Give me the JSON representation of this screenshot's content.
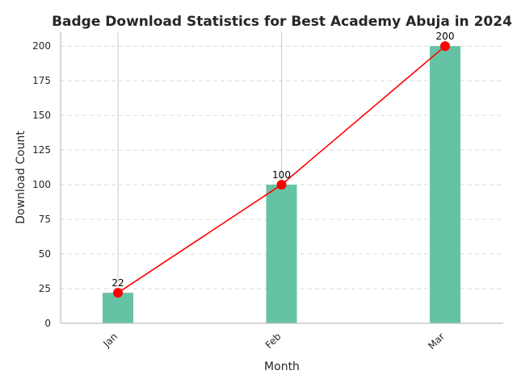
{
  "chart_data": {
    "type": "bar",
    "title": "Badge Download Statistics for Best Academy Abuja in 2024",
    "xlabel": "Month",
    "ylabel": "Download Count",
    "categories": [
      "Jan",
      "Feb",
      "Mar"
    ],
    "series": [
      {
        "type": "bar",
        "values": [
          22,
          100,
          200
        ],
        "color": "#66c2a5"
      },
      {
        "type": "line",
        "values": [
          22,
          100,
          200
        ],
        "color": "#ff0000",
        "marker": "circle"
      }
    ],
    "data_labels": [
      "22",
      "100",
      "200"
    ],
    "ylim": [
      0,
      210
    ],
    "yticks": [
      0,
      25,
      50,
      75,
      100,
      125,
      150,
      175,
      200
    ],
    "grid": "y-dashed",
    "legend": "none"
  }
}
